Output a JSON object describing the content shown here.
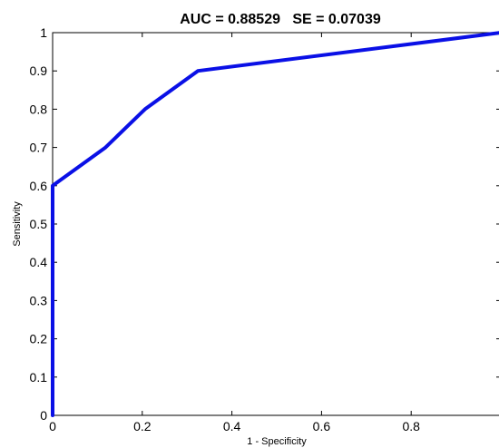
{
  "chart_data": {
    "type": "line",
    "title": "AUC = 0.88529   SE = 0.07039",
    "xlabel": "1 - Specificity",
    "ylabel": "Sensitivity",
    "xlim": [
      0,
      1
    ],
    "ylim": [
      0,
      1
    ],
    "grid": false,
    "legend": "none",
    "x_ticks": [
      "0",
      "0.2",
      "0.4",
      "0.6",
      "0.8"
    ],
    "y_ticks": [
      "0",
      "0.1",
      "0.2",
      "0.3",
      "0.4",
      "0.5",
      "0.6",
      "0.7",
      "0.8",
      "0.9",
      "1"
    ],
    "series": [
      {
        "color": "#0a10e6",
        "x": [
          0,
          0,
          0.118,
          0.206,
          0.324,
          1
        ],
        "y": [
          0,
          0.6,
          0.7,
          0.8,
          0.9,
          1
        ]
      }
    ]
  }
}
